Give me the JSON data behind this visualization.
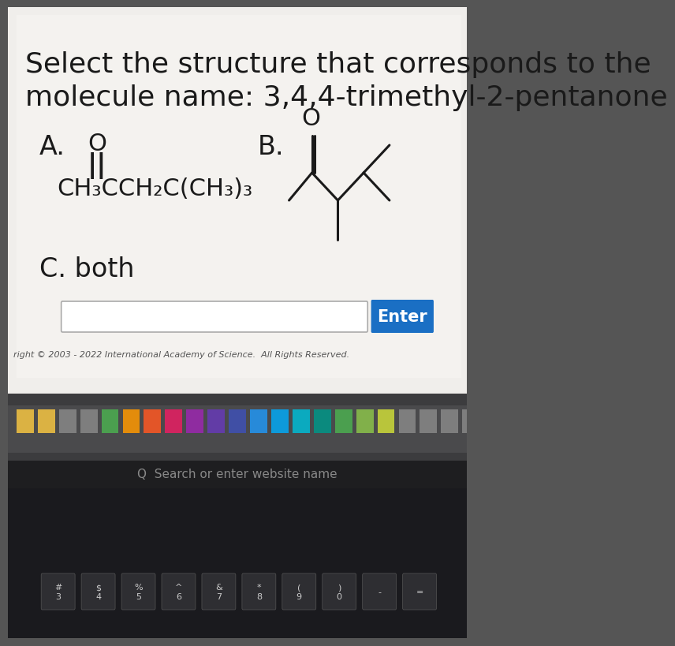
{
  "title_line1": "Select the structure that corresponds to the",
  "title_line2": "molecule name: 3,4,4-trimethyl-2-pentanone",
  "option_a_label": "A.",
  "option_b_label": "B.",
  "option_c_label": "C. both",
  "bg_color": "#e8e5e2",
  "content_bg": "#f0eee9",
  "text_color": "#1a1a1a",
  "enter_button_color": "#1a6fc4",
  "enter_button_text": "Enter",
  "title_fontsize": 26,
  "option_fontsize": 24,
  "formula_fontsize": 22,
  "taskbar_color": "#3a3a3c",
  "keyboard_color": "#1a1a1e",
  "copyright_text": "right © 2003 - 2022 International Academy of Science.  All Rights Reserved."
}
